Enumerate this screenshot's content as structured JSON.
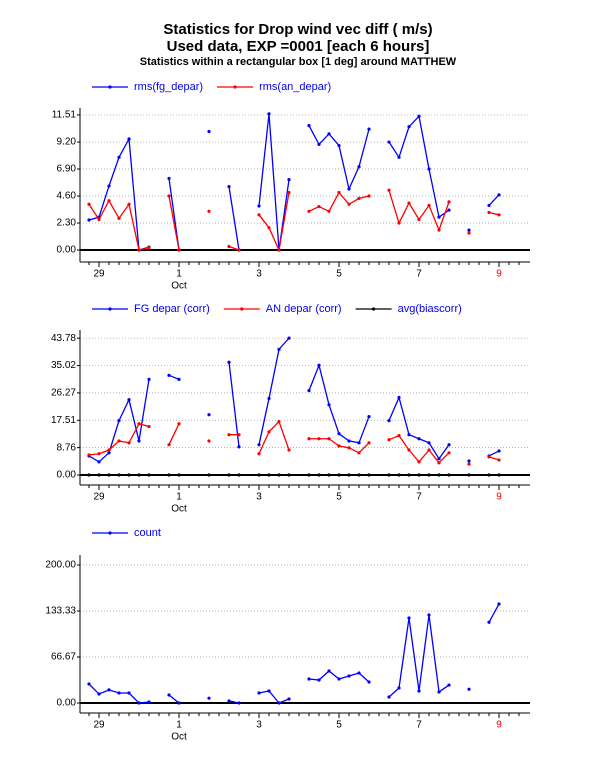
{
  "chart_data": [
    {
      "type": "line",
      "title": "Statistics for  Drop wind vec diff ( m/s)",
      "subtitle": "Used data, EXP =0001 [each  6 hours]",
      "note": "Statistics within a rectangular box [1 deg] around MATTHEW",
      "categories": [
        null,
        "29",
        null,
        null,
        null,
        null,
        null,
        null,
        null,
        "1",
        null,
        null,
        null,
        null,
        null,
        null,
        null,
        "3",
        null,
        null,
        null,
        null,
        null,
        null,
        null,
        "5",
        null,
        null,
        null,
        null,
        null,
        null,
        null,
        "7",
        null,
        null,
        null,
        null,
        null,
        null,
        null,
        "9",
        null,
        null
      ],
      "month_label": {
        "index": 9,
        "text": "Oct"
      },
      "highlight_label": {
        "index": 41,
        "color": "#ff0000"
      },
      "series": [
        {
          "name": "rms(fg_depar)",
          "color": "#0000ff",
          "values": [
            2.56,
            2.8,
            5.46,
            7.9,
            9.46,
            0,
            0.25,
            null,
            6.1,
            0,
            null,
            null,
            10.1,
            null,
            5.4,
            0,
            null,
            3.75,
            11.6,
            0,
            6.0,
            null,
            10.6,
            9.0,
            9.9,
            8.9,
            5.2,
            7.1,
            10.3,
            null,
            9.2,
            7.9,
            10.5,
            11.4,
            6.9,
            2.8,
            3.4,
            null,
            1.7,
            null,
            3.8,
            4.7,
            null,
            null
          ]
        },
        {
          "name": "rms(an_depar)",
          "color": "#ff0000",
          "values": [
            3.9,
            2.6,
            4.2,
            2.7,
            3.9,
            0,
            0.2,
            null,
            4.6,
            0,
            null,
            null,
            3.3,
            null,
            0.3,
            0,
            null,
            3.0,
            1.9,
            0,
            4.9,
            null,
            3.3,
            3.7,
            3.3,
            4.9,
            3.9,
            4.4,
            4.6,
            null,
            5.1,
            2.3,
            4.0,
            2.6,
            3.8,
            1.7,
            4.1,
            null,
            1.45,
            null,
            3.2,
            3.0,
            null,
            null
          ]
        }
      ],
      "ylim": [
        -1.02,
        12.1
      ],
      "yticks": [
        {
          "value": 0,
          "label": "0.00"
        },
        {
          "value": 2.3,
          "label": "2.30"
        },
        {
          "value": 4.6,
          "label": "4.60"
        },
        {
          "value": 6.9,
          "label": "6.90"
        },
        {
          "value": 9.2,
          "label": "9.20"
        },
        11.51
      ],
      "grid": true
    },
    {
      "type": "line",
      "categories": [
        null,
        "29",
        null,
        null,
        null,
        null,
        null,
        null,
        null,
        "1",
        null,
        null,
        null,
        null,
        null,
        null,
        null,
        "3",
        null,
        null,
        null,
        null,
        null,
        null,
        null,
        "5",
        null,
        null,
        null,
        null,
        null,
        null,
        null,
        "7",
        null,
        null,
        null,
        null,
        null,
        null,
        null,
        "9",
        null,
        null
      ],
      "month_label": {
        "index": 9,
        "text": "Oct"
      },
      "highlight_label": {
        "index": 41,
        "color": "#ff0000"
      },
      "series": [
        {
          "name": "FG depar (corr)",
          "color": "#0000ff",
          "values": [
            6.1,
            4.2,
            7.1,
            17.4,
            24.1,
            10.9,
            30.6,
            null,
            31.9,
            30.6,
            null,
            null,
            19.3,
            null,
            36.1,
            9.0,
            null,
            9.7,
            24.5,
            40.2,
            43.8,
            null,
            27.0,
            35.1,
            22.5,
            13.2,
            10.9,
            10.3,
            18.7,
            null,
            17.4,
            24.8,
            12.9,
            11.6,
            10.3,
            5.2,
            9.7,
            null,
            4.5,
            null,
            6.1,
            7.7,
            null,
            null
          ]
        },
        {
          "name": "AN depar (corr)",
          "color": "#ff0000",
          "values": [
            6.4,
            6.8,
            8.0,
            10.9,
            10.3,
            16.4,
            15.5,
            null,
            9.7,
            16.4,
            null,
            null,
            10.9,
            null,
            12.9,
            12.9,
            null,
            6.8,
            13.8,
            17.1,
            8.0,
            null,
            11.6,
            11.6,
            11.6,
            9.3,
            8.7,
            7.1,
            10.3,
            null,
            11.3,
            12.6,
            8.0,
            4.2,
            8.0,
            3.9,
            7.1,
            null,
            3.5,
            null,
            5.8,
            4.8,
            null,
            null
          ]
        },
        {
          "name": "avg(biascorr)",
          "color": "#000000",
          "values": [
            0,
            0,
            0,
            0,
            0,
            0,
            0,
            null,
            0,
            0,
            null,
            null,
            0,
            null,
            0,
            0,
            null,
            0,
            0,
            0,
            0,
            null,
            0,
            0,
            0,
            0,
            0,
            0,
            0,
            null,
            0,
            0,
            0,
            0,
            0,
            0,
            0,
            null,
            0,
            null,
            0,
            0,
            null,
            null
          ]
        }
      ],
      "ylim": [
        -3.2,
        46.4
      ],
      "yticks": [
        {
          "value": 0,
          "label": "0.00"
        },
        8.76,
        17.51,
        26.27,
        35.02,
        43.78
      ],
      "grid": true
    },
    {
      "type": "line",
      "categories": [
        null,
        "29",
        null,
        null,
        null,
        null,
        null,
        null,
        null,
        "1",
        null,
        null,
        null,
        null,
        null,
        null,
        null,
        "3",
        null,
        null,
        null,
        null,
        null,
        null,
        null,
        "5",
        null,
        null,
        null,
        null,
        null,
        null,
        null,
        "7",
        null,
        null,
        null,
        null,
        null,
        null,
        null,
        "9",
        null,
        null
      ],
      "month_label": {
        "index": 9,
        "text": "Oct"
      },
      "highlight_label": {
        "index": 41,
        "color": "#ff0000"
      },
      "series": [
        {
          "name": "count",
          "color": "#0000ff",
          "values": [
            27.5,
            13,
            19,
            14.5,
            14.5,
            0,
            1.5,
            null,
            11.6,
            0,
            null,
            null,
            7,
            null,
            3,
            0,
            null,
            14.5,
            17.4,
            0,
            5.8,
            null,
            34.8,
            33.3,
            46.4,
            34.8,
            39.1,
            43.5,
            30.4,
            null,
            8.7,
            21.7,
            123.2,
            17.4,
            127.5,
            16,
            26,
            null,
            20,
            null,
            117,
            143.5,
            null,
            null
          ]
        }
      ],
      "ylim": [
        -14.5,
        214.5
      ],
      "yticks": [
        {
          "value": 0,
          "label": "0.00"
        },
        66.67,
        133.33,
        {
          "value": 200,
          "label": "200.00"
        }
      ],
      "grid": true
    }
  ]
}
